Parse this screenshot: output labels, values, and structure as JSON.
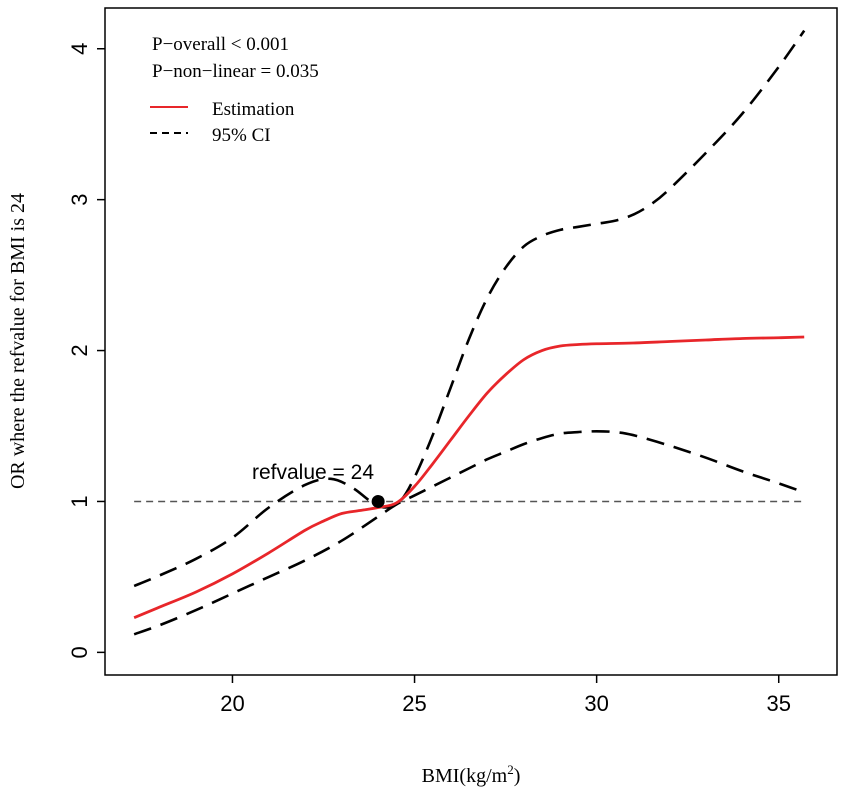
{
  "chart_data": {
    "type": "line",
    "title": "",
    "xlabel_main": "BMI(kg/m",
    "xlabel_sup": "2",
    "xlabel_close": ")",
    "ylabel": "OR where the refvalue for BMI is 24",
    "xlim": [
      16.5,
      36.6
    ],
    "ylim": [
      -0.15,
      4.27
    ],
    "xticks": [
      20,
      25,
      30,
      35
    ],
    "yticks": [
      0,
      1,
      2,
      3,
      4
    ],
    "annotations": {
      "p_overall": "P−overall < 0.001",
      "p_nonlinear": "P−non−linear = 0.035",
      "refvalue_label": "refvalue = 24"
    },
    "legend": {
      "placement": "top-left",
      "entries": [
        {
          "label": "Estimation",
          "style": "solid",
          "color": "#e8262a"
        },
        {
          "label": "95% CI",
          "style": "dashed",
          "color": "#000000"
        }
      ]
    },
    "reference_line": {
      "y": 1,
      "style": "dashed",
      "color": "#555555"
    },
    "reference_point": {
      "x": 24,
      "y": 1
    },
    "series": [
      {
        "name": "Estimation",
        "color": "#e8262a",
        "style": "solid",
        "x": [
          17.3,
          18,
          19,
          20,
          21,
          22,
          22.5,
          23,
          23.5,
          24,
          24.5,
          25,
          25.5,
          26,
          26.5,
          27,
          27.5,
          28,
          28.5,
          29,
          29.5,
          30,
          31,
          32,
          33,
          34,
          35,
          35.7
        ],
        "y": [
          0.23,
          0.3,
          0.4,
          0.52,
          0.66,
          0.81,
          0.87,
          0.92,
          0.94,
          0.96,
          0.99,
          1.1,
          1.25,
          1.41,
          1.57,
          1.72,
          1.84,
          1.94,
          2.0,
          2.03,
          2.04,
          2.045,
          2.05,
          2.06,
          2.07,
          2.08,
          2.085,
          2.09
        ]
      },
      {
        "name": "95% CI upper",
        "color": "#000000",
        "style": "dashed",
        "x": [
          17.3,
          18,
          19,
          20,
          21,
          22,
          22.7,
          23.3,
          23.8,
          24.2,
          24.6,
          25,
          25.5,
          26,
          26.5,
          27,
          27.5,
          28,
          28.5,
          29,
          29.5,
          30,
          30.5,
          31,
          31.5,
          32,
          33,
          34,
          35,
          35.7
        ],
        "y": [
          0.44,
          0.51,
          0.62,
          0.76,
          0.96,
          1.11,
          1.15,
          1.09,
          1.0,
          0.96,
          1.0,
          1.16,
          1.44,
          1.76,
          2.08,
          2.35,
          2.55,
          2.69,
          2.76,
          2.8,
          2.82,
          2.84,
          2.86,
          2.9,
          2.97,
          3.07,
          3.31,
          3.57,
          3.88,
          4.12
        ]
      },
      {
        "name": "95% CI lower",
        "color": "#000000",
        "style": "dashed",
        "x": [
          17.3,
          18,
          19,
          20,
          21,
          22,
          23,
          24,
          24.5,
          25,
          25.5,
          26,
          26.5,
          27,
          27.5,
          28,
          28.5,
          29,
          29.5,
          30,
          30.5,
          31,
          32,
          33,
          34,
          35,
          35.7
        ],
        "y": [
          0.12,
          0.18,
          0.28,
          0.39,
          0.5,
          0.61,
          0.74,
          0.9,
          0.98,
          1.04,
          1.1,
          1.16,
          1.22,
          1.28,
          1.33,
          1.38,
          1.42,
          1.45,
          1.46,
          1.465,
          1.46,
          1.44,
          1.37,
          1.29,
          1.2,
          1.12,
          1.06
        ]
      }
    ]
  }
}
